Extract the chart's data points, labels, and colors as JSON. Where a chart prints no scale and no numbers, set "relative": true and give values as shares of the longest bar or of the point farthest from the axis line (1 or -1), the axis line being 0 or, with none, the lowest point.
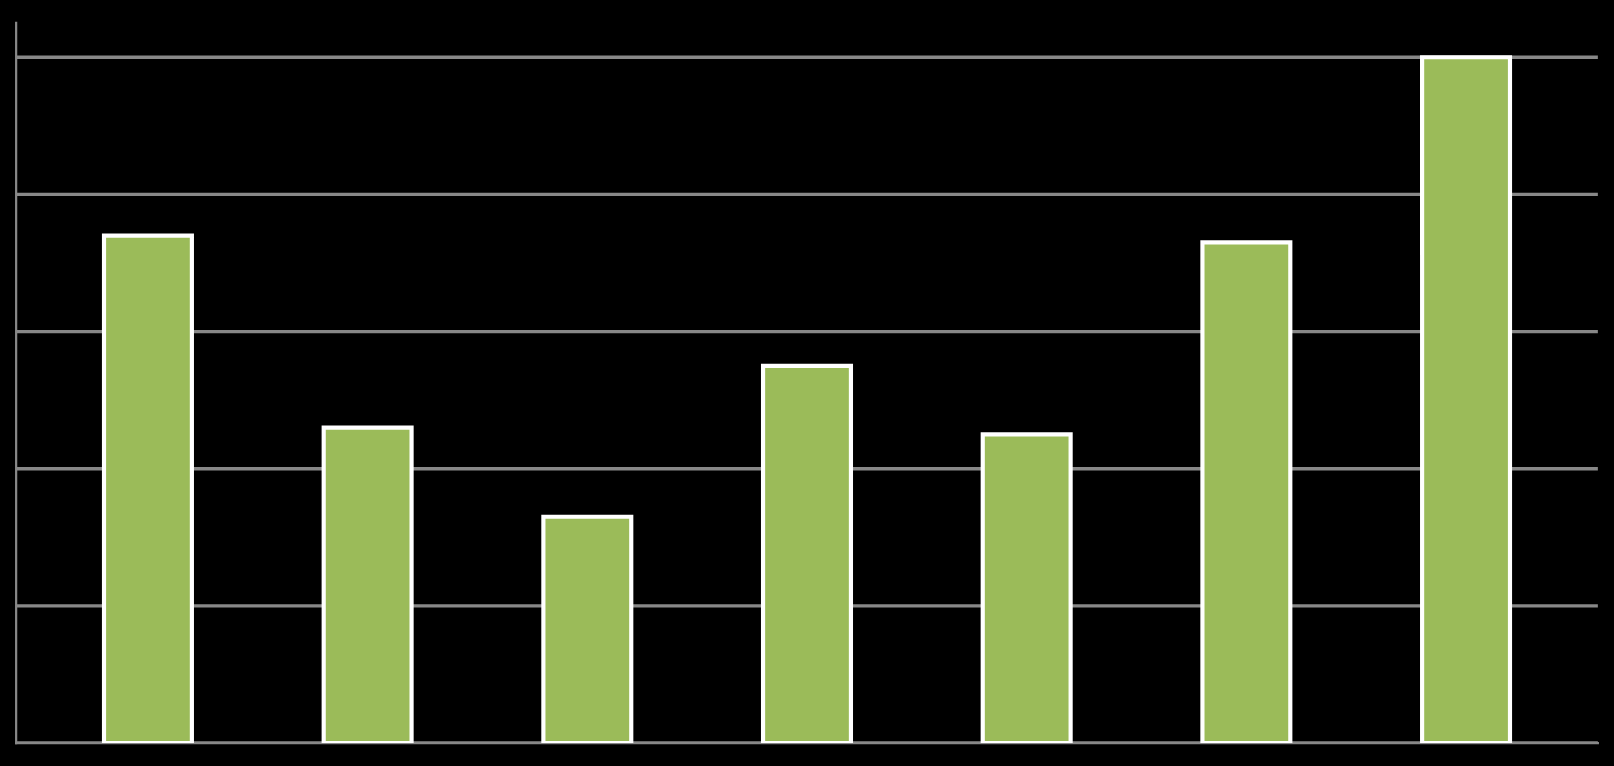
{
  "chart_data": {
    "type": "bar",
    "relative": true,
    "categories": [
      null,
      null,
      null,
      null,
      null,
      null,
      null
    ],
    "values": [
      0.74,
      0.46,
      0.33,
      0.55,
      0.45,
      0.73,
      1.0
    ],
    "color": "#9bbb59",
    "grid": "y"
  }
}
